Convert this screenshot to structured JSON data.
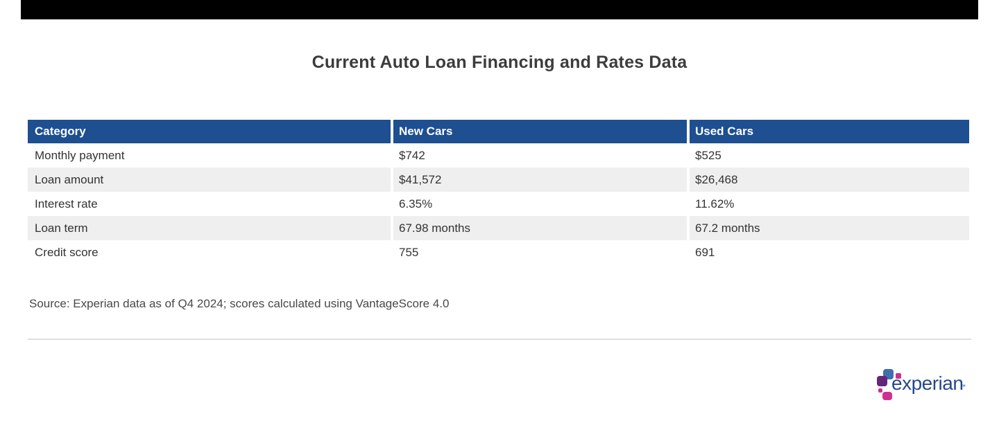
{
  "title": "Current Auto Loan Financing and Rates Data",
  "chart_data": {
    "type": "table",
    "title": "Current Auto Loan Financing and Rates Data",
    "columns": [
      "Category",
      "New Cars",
      "Used Cars"
    ],
    "rows": [
      [
        "Monthly payment",
        "$742",
        "$525"
      ],
      [
        "Loan amount",
        "$41,572",
        "$26,468"
      ],
      [
        "Interest rate",
        "6.35%",
        "11.62%"
      ],
      [
        "Loan term",
        "67.98 months",
        "67.2 months"
      ],
      [
        "Credit score",
        "755",
        "691"
      ]
    ],
    "layout_hints": {
      "header_style": "solid blue bar with white bold text",
      "row_striping": "alternate light gray on rows 2 and 4",
      "grid": "off"
    }
  },
  "source_note": "Source: Experian data as of Q4 2024; scores calculated using VantageScore 4.0",
  "logo": {
    "wordmark": "experian",
    "trademark": "™"
  },
  "colors": {
    "header_bg": "#1d4f91",
    "header_text": "#ffffff",
    "row_stripe": "#efefef",
    "body_text": "#333333",
    "title_text": "#3c3c3c",
    "source_text": "#484848",
    "divider": "#e0e0e0",
    "top_bar": "#000000",
    "logo_word": "#26478d",
    "logo_blue": "#406eb3",
    "logo_purple": "#632678",
    "logo_pink": "#cf2f8d"
  }
}
